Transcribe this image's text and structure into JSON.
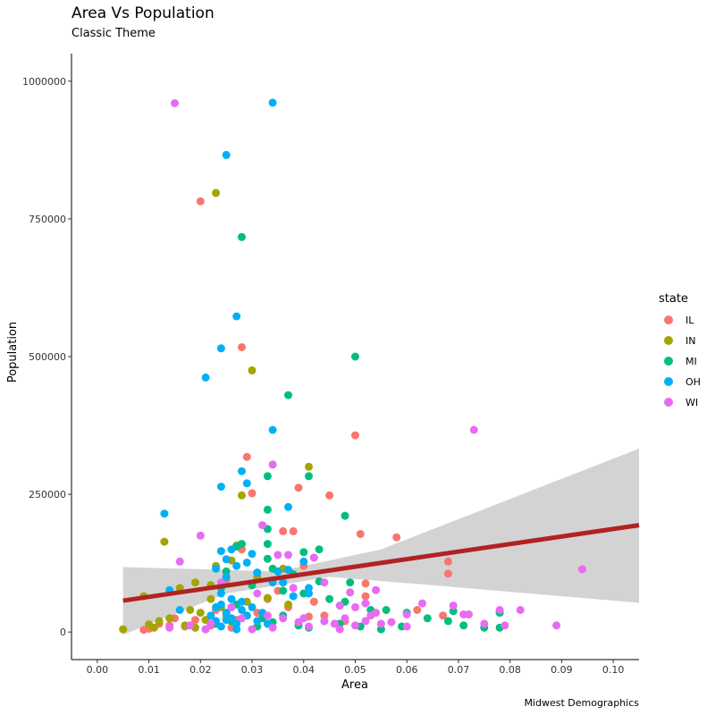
{
  "chart_data": {
    "type": "scatter",
    "title": "Area Vs Population",
    "subtitle": "Classic Theme",
    "caption": "Midwest Demographics",
    "xlabel": "Area",
    "ylabel": "Population",
    "xlim": [
      -0.005,
      0.105
    ],
    "ylim": [
      -50000,
      1050000
    ],
    "x_ticks": [
      0.0,
      0.01,
      0.02,
      0.03,
      0.04,
      0.05,
      0.06,
      0.07,
      0.08,
      0.09,
      0.1
    ],
    "x_tick_labels": [
      "0.00",
      "0.01",
      "0.02",
      "0.03",
      "0.04",
      "0.05",
      "0.06",
      "0.07",
      "0.08",
      "0.09",
      "0.10"
    ],
    "y_ticks": [
      0,
      250000,
      500000,
      750000,
      1000000
    ],
    "y_tick_labels": [
      "0",
      "250000",
      "500000",
      "750000",
      "1000000"
    ],
    "grid": false,
    "legend": {
      "title": "state",
      "position": "right"
    },
    "series": [
      {
        "name": "IL",
        "color": "#F8766D",
        "points": [
          [
            0.02,
            782000
          ],
          [
            0.028,
            517000
          ],
          [
            0.05,
            357000
          ],
          [
            0.029,
            318000
          ],
          [
            0.03,
            252000
          ],
          [
            0.039,
            262000
          ],
          [
            0.045,
            248000
          ],
          [
            0.036,
            183000
          ],
          [
            0.038,
            183000
          ],
          [
            0.051,
            178000
          ],
          [
            0.058,
            172000
          ],
          [
            0.068,
            128000
          ],
          [
            0.068,
            106000
          ],
          [
            0.028,
            150000
          ],
          [
            0.052,
            88000
          ],
          [
            0.035,
            75000
          ],
          [
            0.04,
            120000
          ],
          [
            0.025,
            95000
          ],
          [
            0.033,
            60000
          ],
          [
            0.042,
            55000
          ],
          [
            0.052,
            65000
          ],
          [
            0.015,
            25000
          ],
          [
            0.017,
            10000
          ],
          [
            0.01,
            6000
          ],
          [
            0.012,
            15000
          ],
          [
            0.019,
            22000
          ],
          [
            0.022,
            12000
          ],
          [
            0.026,
            8000
          ],
          [
            0.031,
            35000
          ],
          [
            0.044,
            30000
          ],
          [
            0.048,
            20000
          ],
          [
            0.062,
            40000
          ],
          [
            0.067,
            30000
          ],
          [
            0.009,
            4000
          ],
          [
            0.014,
            12000
          ],
          [
            0.023,
            40000
          ],
          [
            0.027,
            22000
          ],
          [
            0.037,
            45000
          ],
          [
            0.041,
            28000
          ],
          [
            0.046,
            15000
          ]
        ]
      },
      {
        "name": "IN",
        "color": "#A3A500",
        "points": [
          [
            0.023,
            797000
          ],
          [
            0.03,
            475000
          ],
          [
            0.041,
            300000
          ],
          [
            0.028,
            248000
          ],
          [
            0.013,
            164000
          ],
          [
            0.027,
            157000
          ],
          [
            0.026,
            130000
          ],
          [
            0.019,
            90000
          ],
          [
            0.022,
            85000
          ],
          [
            0.036,
            115000
          ],
          [
            0.009,
            65000
          ],
          [
            0.016,
            80000
          ],
          [
            0.023,
            120000
          ],
          [
            0.031,
            100000
          ],
          [
            0.02,
            35000
          ],
          [
            0.01,
            14000
          ],
          [
            0.012,
            20000
          ],
          [
            0.014,
            25000
          ],
          [
            0.018,
            40000
          ],
          [
            0.024,
            45000
          ],
          [
            0.005,
            5000
          ],
          [
            0.011,
            8000
          ],
          [
            0.017,
            12000
          ],
          [
            0.021,
            22000
          ],
          [
            0.025,
            30000
          ],
          [
            0.029,
            55000
          ],
          [
            0.033,
            62000
          ],
          [
            0.037,
            50000
          ],
          [
            0.019,
            8000
          ],
          [
            0.022,
            60000
          ]
        ]
      },
      {
        "name": "MI",
        "color": "#00BF7D",
        "points": [
          [
            0.028,
            717000
          ],
          [
            0.05,
            500000
          ],
          [
            0.037,
            430000
          ],
          [
            0.041,
            283000
          ],
          [
            0.033,
            283000
          ],
          [
            0.033,
            222000
          ],
          [
            0.048,
            211000
          ],
          [
            0.033,
            187000
          ],
          [
            0.033,
            160000
          ],
          [
            0.028,
            160000
          ],
          [
            0.043,
            150000
          ],
          [
            0.04,
            145000
          ],
          [
            0.027,
            155000
          ],
          [
            0.042,
            135000
          ],
          [
            0.033,
            133000
          ],
          [
            0.034,
            115000
          ],
          [
            0.025,
            110000
          ],
          [
            0.038,
            105000
          ],
          [
            0.043,
            92000
          ],
          [
            0.049,
            90000
          ],
          [
            0.03,
            85000
          ],
          [
            0.036,
            75000
          ],
          [
            0.04,
            70000
          ],
          [
            0.045,
            60000
          ],
          [
            0.048,
            55000
          ],
          [
            0.053,
            40000
          ],
          [
            0.056,
            40000
          ],
          [
            0.06,
            35000
          ],
          [
            0.064,
            25000
          ],
          [
            0.068,
            20000
          ],
          [
            0.071,
            12000
          ],
          [
            0.075,
            8000
          ],
          [
            0.078,
            8000
          ],
          [
            0.055,
            5000
          ],
          [
            0.059,
            10000
          ],
          [
            0.051,
            10000
          ],
          [
            0.047,
            15000
          ],
          [
            0.044,
            20000
          ],
          [
            0.032,
            25000
          ],
          [
            0.029,
            30000
          ],
          [
            0.027,
            50000
          ],
          [
            0.024,
            80000
          ],
          [
            0.021,
            5000
          ],
          [
            0.023,
            15000
          ],
          [
            0.026,
            20000
          ],
          [
            0.031,
            10000
          ],
          [
            0.034,
            18000
          ],
          [
            0.036,
            30000
          ],
          [
            0.039,
            12000
          ],
          [
            0.041,
            8000
          ],
          [
            0.069,
            38000
          ],
          [
            0.078,
            35000
          ]
        ]
      },
      {
        "name": "OH",
        "color": "#00B0F6",
        "points": [
          [
            0.034,
            961000
          ],
          [
            0.025,
            866000
          ],
          [
            0.027,
            573000
          ],
          [
            0.024,
            515000
          ],
          [
            0.021,
            462000
          ],
          [
            0.034,
            367000
          ],
          [
            0.028,
            292000
          ],
          [
            0.029,
            270000
          ],
          [
            0.024,
            264000
          ],
          [
            0.037,
            227000
          ],
          [
            0.013,
            215000
          ],
          [
            0.024,
            147000
          ],
          [
            0.026,
            150000
          ],
          [
            0.03,
            142000
          ],
          [
            0.025,
            132000
          ],
          [
            0.023,
            115000
          ],
          [
            0.027,
            120000
          ],
          [
            0.031,
            108000
          ],
          [
            0.029,
            126000
          ],
          [
            0.035,
            110000
          ],
          [
            0.037,
            113000
          ],
          [
            0.04,
            128000
          ],
          [
            0.034,
            90000
          ],
          [
            0.038,
            65000
          ],
          [
            0.041,
            70000
          ],
          [
            0.014,
            76000
          ],
          [
            0.016,
            40000
          ],
          [
            0.024,
            70000
          ],
          [
            0.026,
            60000
          ],
          [
            0.028,
            55000
          ],
          [
            0.022,
            30000
          ],
          [
            0.023,
            20000
          ],
          [
            0.024,
            10000
          ],
          [
            0.025,
            35000
          ],
          [
            0.026,
            25000
          ],
          [
            0.027,
            15000
          ],
          [
            0.028,
            40000
          ],
          [
            0.029,
            30000
          ],
          [
            0.03,
            45000
          ],
          [
            0.031,
            20000
          ],
          [
            0.032,
            35000
          ],
          [
            0.024,
            50000
          ],
          [
            0.027,
            5000
          ],
          [
            0.033,
            15000
          ],
          [
            0.041,
            80000
          ],
          [
            0.036,
            90000
          ],
          [
            0.025,
            100000
          ],
          [
            0.023,
            45000
          ],
          [
            0.025,
            22000
          ],
          [
            0.026,
            45000
          ]
        ]
      },
      {
        "name": "WI",
        "color": "#E76BF3",
        "points": [
          [
            0.015,
            960000
          ],
          [
            0.073,
            367000
          ],
          [
            0.034,
            304000
          ],
          [
            0.032,
            194000
          ],
          [
            0.02,
            175000
          ],
          [
            0.016,
            128000
          ],
          [
            0.042,
            135000
          ],
          [
            0.035,
            140000
          ],
          [
            0.037,
            140000
          ],
          [
            0.094,
            114000
          ],
          [
            0.044,
            90000
          ],
          [
            0.054,
            76000
          ],
          [
            0.038,
            80000
          ],
          [
            0.063,
            52000
          ],
          [
            0.069,
            48000
          ],
          [
            0.047,
            48000
          ],
          [
            0.05,
            45000
          ],
          [
            0.049,
            72000
          ],
          [
            0.052,
            52000
          ],
          [
            0.082,
            40000
          ],
          [
            0.078,
            40000
          ],
          [
            0.071,
            32000
          ],
          [
            0.072,
            32000
          ],
          [
            0.06,
            32000
          ],
          [
            0.057,
            18000
          ],
          [
            0.06,
            10000
          ],
          [
            0.075,
            15000
          ],
          [
            0.079,
            12000
          ],
          [
            0.089,
            12000
          ],
          [
            0.048,
            25000
          ],
          [
            0.046,
            15000
          ],
          [
            0.044,
            20000
          ],
          [
            0.053,
            30000
          ],
          [
            0.054,
            35000
          ],
          [
            0.055,
            15000
          ],
          [
            0.052,
            20000
          ],
          [
            0.05,
            12000
          ],
          [
            0.039,
            18000
          ],
          [
            0.036,
            25000
          ],
          [
            0.033,
            30000
          ],
          [
            0.031,
            70000
          ],
          [
            0.026,
            45000
          ],
          [
            0.022,
            15000
          ],
          [
            0.018,
            12000
          ],
          [
            0.014,
            8000
          ],
          [
            0.021,
            5000
          ],
          [
            0.028,
            25000
          ],
          [
            0.03,
            5000
          ],
          [
            0.034,
            8000
          ],
          [
            0.041,
            10000
          ],
          [
            0.047,
            5000
          ],
          [
            0.024,
            90000
          ],
          [
            0.04,
            25000
          ]
        ]
      }
    ],
    "smooth": {
      "method": "lm",
      "color": "#B22222",
      "band_color": "#D3D3D3",
      "line": [
        [
          0.005,
          57000
        ],
        [
          0.105,
          194000
        ]
      ],
      "band_upper": [
        [
          0.005,
          118000
        ],
        [
          0.035,
          110000
        ],
        [
          0.055,
          150000
        ],
        [
          0.105,
          333000
        ]
      ],
      "band_lower": [
        [
          0.005,
          -5000
        ],
        [
          0.025,
          70000
        ],
        [
          0.045,
          100000
        ],
        [
          0.065,
          85000
        ],
        [
          0.105,
          53000
        ]
      ]
    }
  }
}
